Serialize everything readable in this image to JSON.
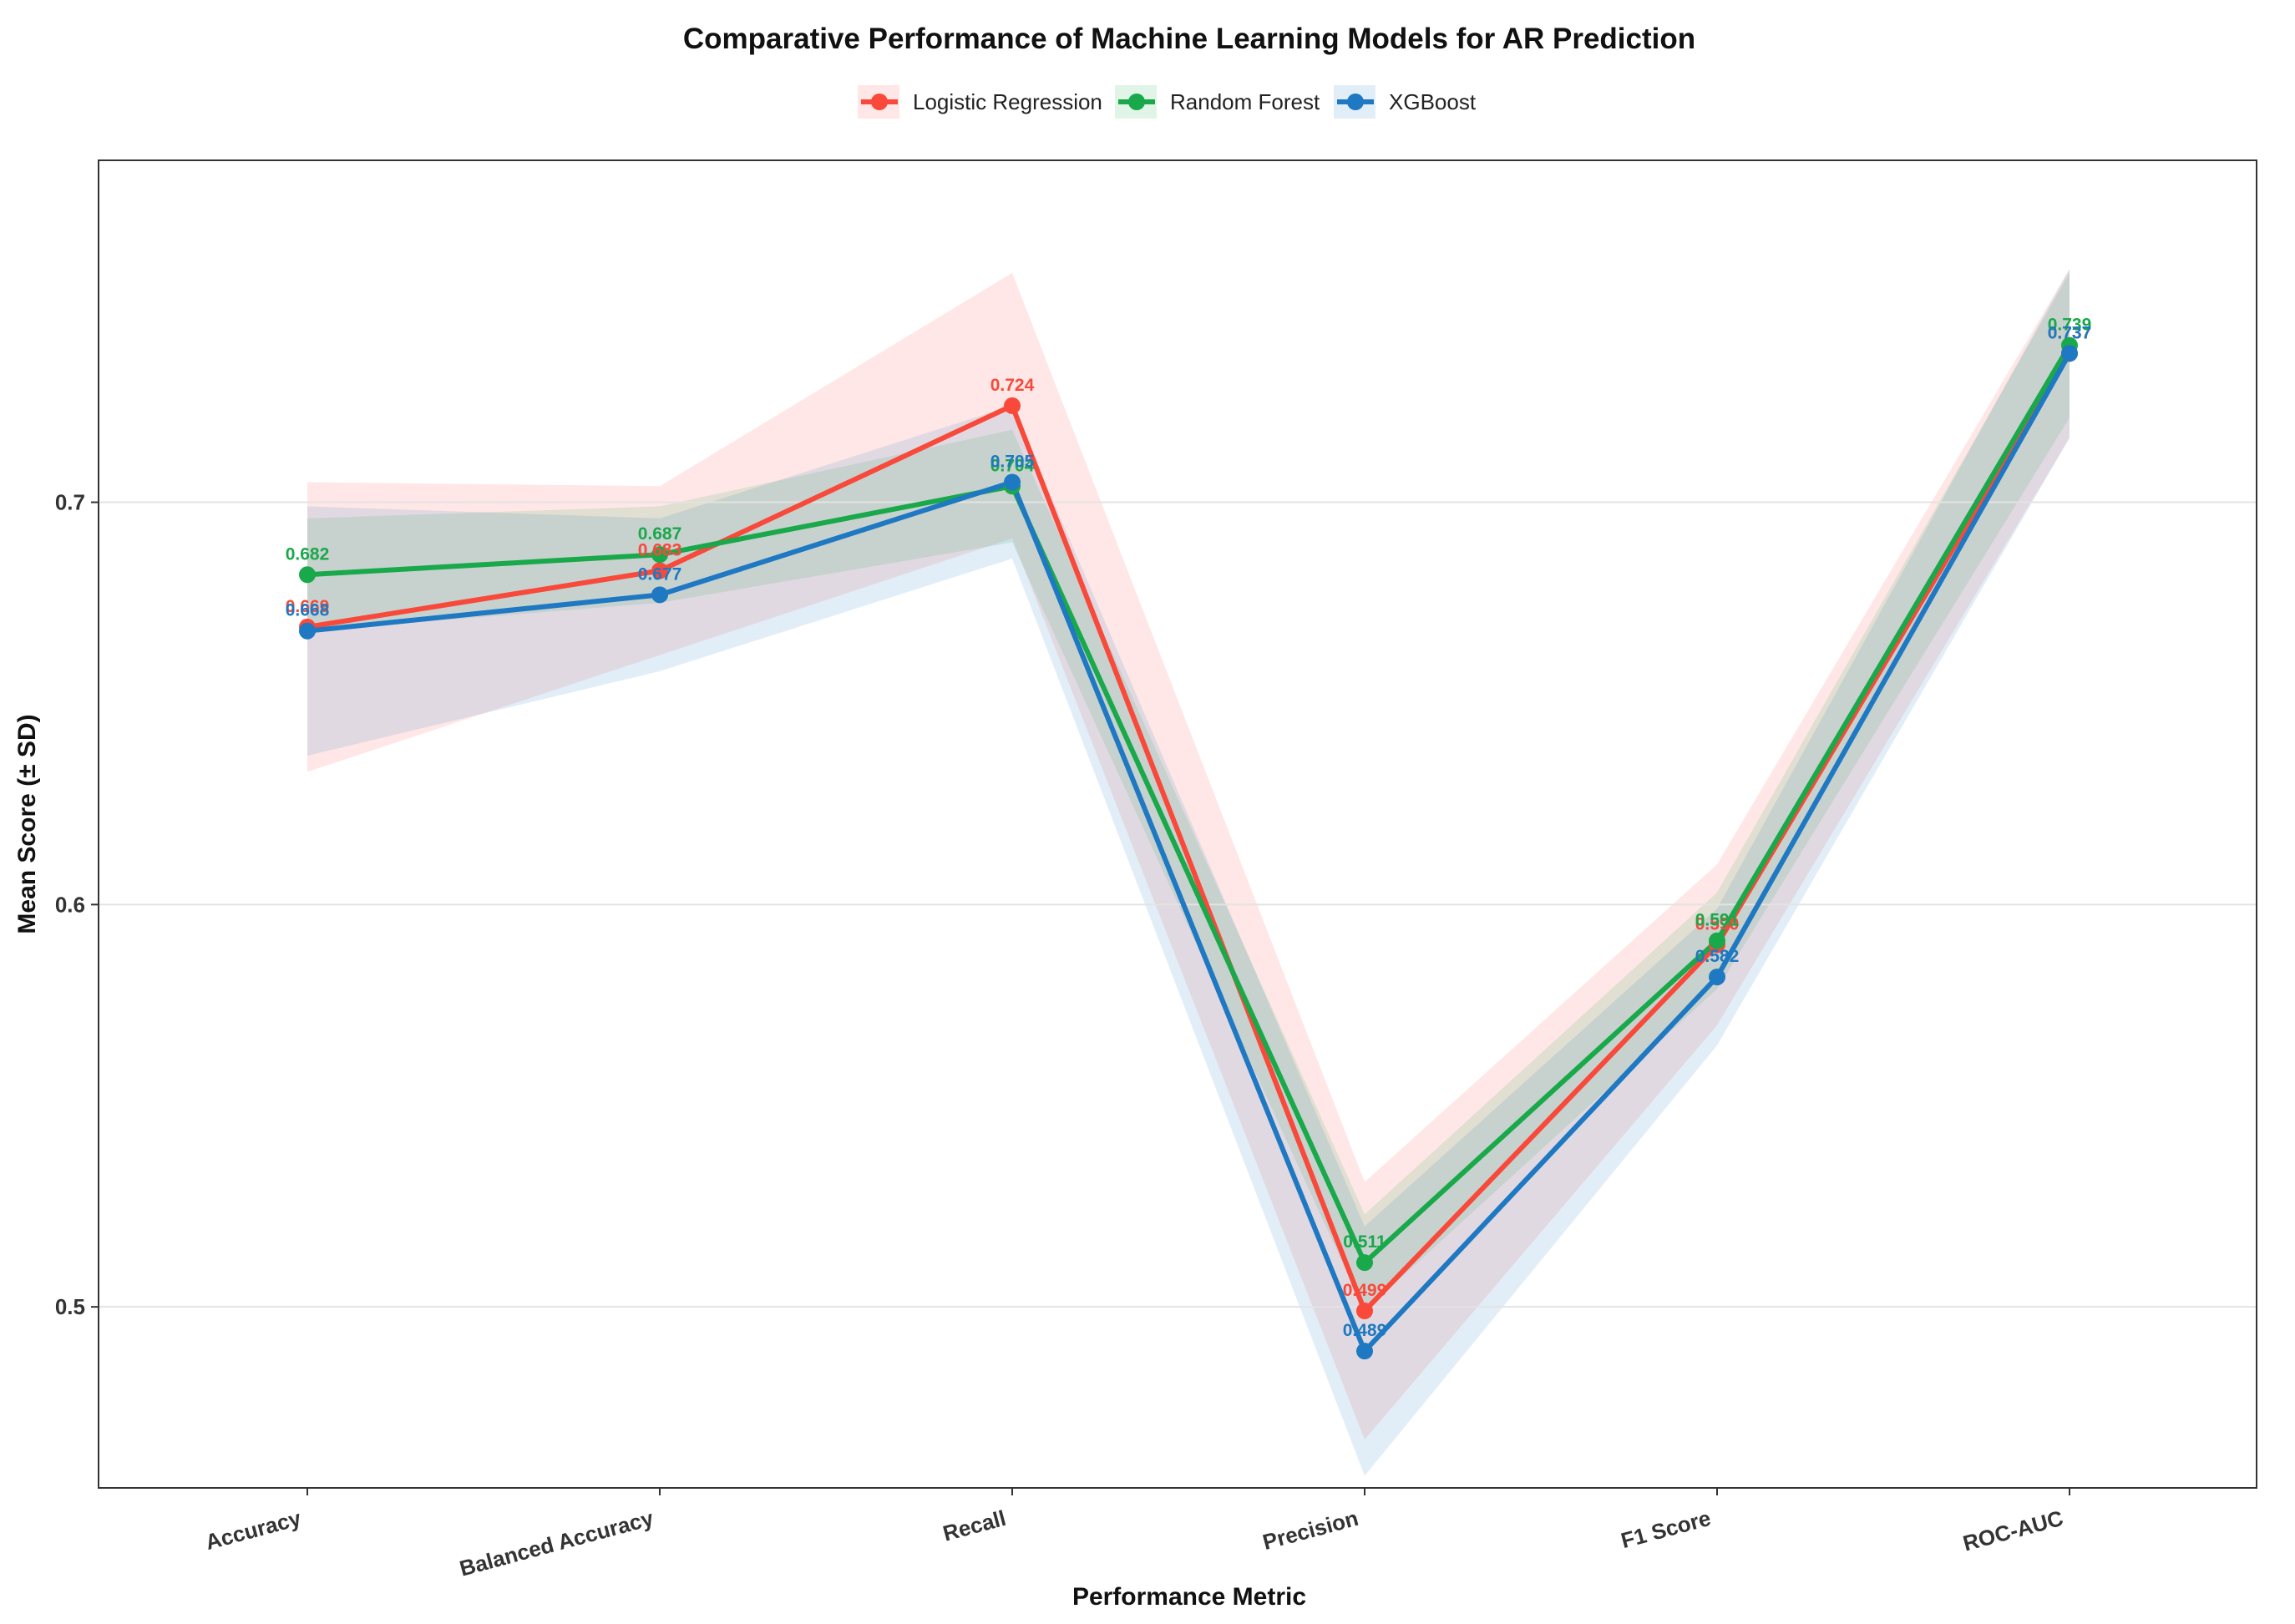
{
  "chart_data": {
    "type": "line",
    "title": "Comparative Performance of Machine Learning Models for AR Prediction",
    "xlabel": "Performance Metric",
    "ylabel": "Mean Score (± SD)",
    "categories": [
      "Accuracy",
      "Balanced Accuracy",
      "Recall",
      "Precision",
      "F1 Score",
      "ROC-AUC"
    ],
    "ylim": [
      0.455,
      0.785
    ],
    "yticks": [
      0.5,
      0.6,
      0.7
    ],
    "ytick_labels": [
      "0.5",
      "0.6",
      "0.7"
    ],
    "grid": true,
    "legend_position": "top",
    "series": [
      {
        "name": "Logistic Regression",
        "color": "#F8493A",
        "values": [
          0.669,
          0.683,
          0.724,
          0.499,
          0.59,
          0.737
        ],
        "labels": [
          "0.669",
          "0.683",
          "0.724",
          "0.499",
          "0.590",
          "0.737"
        ],
        "sd": [
          0.036,
          0.021,
          0.033,
          0.032,
          0.02,
          0.021
        ]
      },
      {
        "name": "Random Forest",
        "color": "#19A84A",
        "values": [
          0.682,
          0.687,
          0.704,
          0.511,
          0.591,
          0.739
        ],
        "labels": [
          "0.682",
          "0.687",
          "0.704",
          "0.511",
          "0.591",
          "0.739"
        ],
        "sd": [
          0.014,
          0.012,
          0.014,
          0.012,
          0.012,
          0.018
        ]
      },
      {
        "name": "XGBoost",
        "color": "#1E78C2",
        "values": [
          0.668,
          0.677,
          0.705,
          0.489,
          0.582,
          0.737
        ],
        "labels": [
          "0.668",
          "0.677",
          "0.705",
          "0.489",
          "0.582",
          "0.737"
        ],
        "sd": [
          0.031,
          0.019,
          0.019,
          0.031,
          0.017,
          0.021
        ]
      }
    ]
  }
}
